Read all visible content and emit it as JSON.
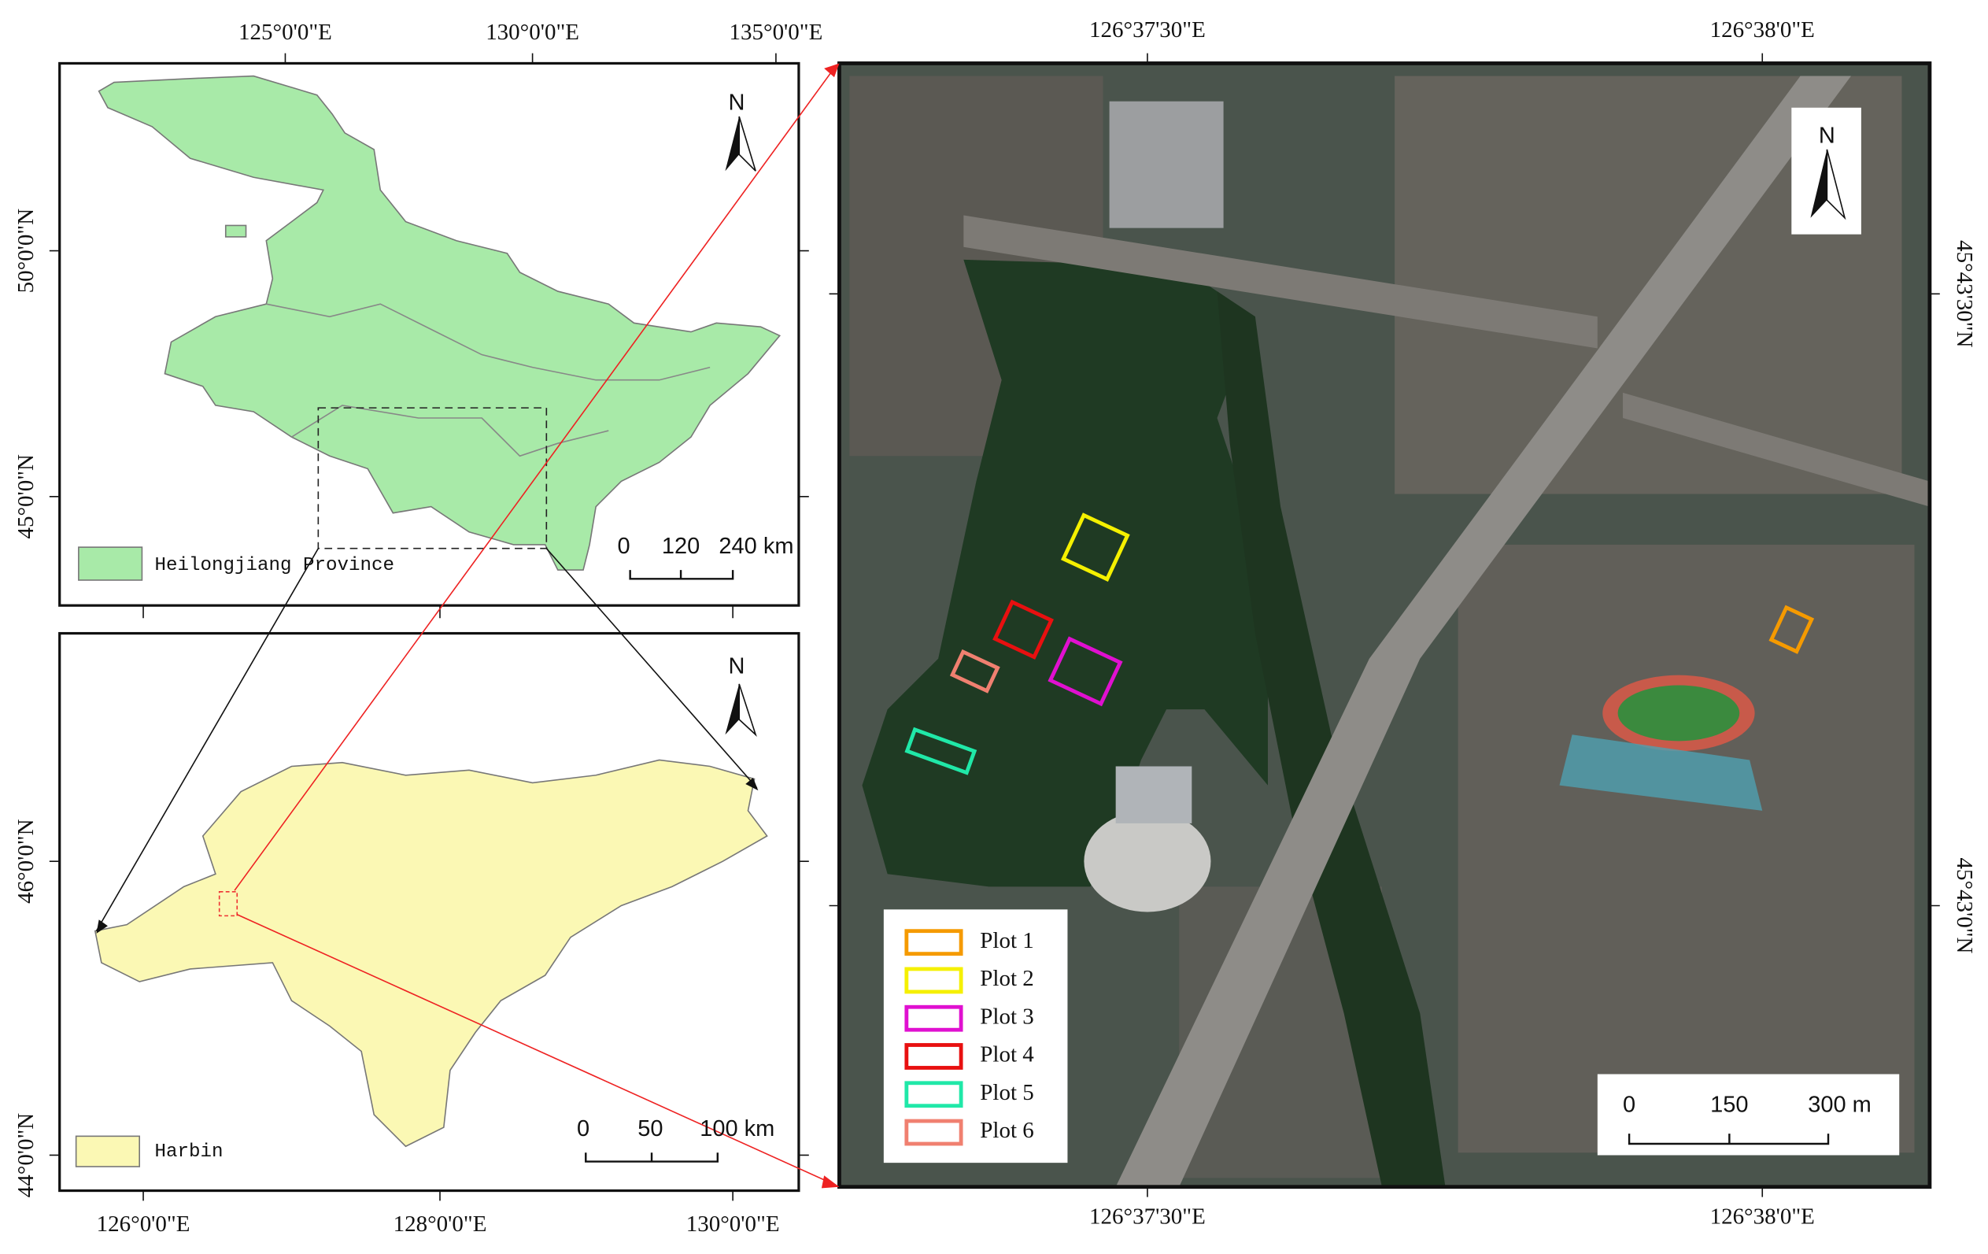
{
  "panels": {
    "heilongjiang": {
      "top_labels": [
        "125°0'0\"E",
        "130°0'0\"E",
        "135°0'0\"E"
      ],
      "left_labels": [
        "50°0'0\"N",
        "45°0'0\"N"
      ],
      "legend": "Heilongjiang Province",
      "scale": [
        "0",
        "120",
        "240 km"
      ],
      "north": "N"
    },
    "harbin": {
      "bottom_labels": [
        "126°0'0\"E",
        "128°0'0\"E",
        "130°0'0\"E"
      ],
      "left_labels": [
        "46°0'0\"N",
        "44°0'0\"N"
      ],
      "legend": "Harbin",
      "scale": [
        "0",
        "50",
        "100 km"
      ],
      "north": "N"
    },
    "satellite": {
      "top_labels": [
        "126°37'30\"E",
        "126°38'0\"E"
      ],
      "bottom_labels": [
        "126°37'30\"E",
        "126°38'0\"E"
      ],
      "right_labels": [
        "45°43'30\"N",
        "45°43'0\"N"
      ],
      "north": "N",
      "scale": [
        "0",
        "150",
        "300 m"
      ],
      "plots": [
        {
          "name": "Plot 1",
          "color": "#f59a00"
        },
        {
          "name": "Plot 2",
          "color": "#f5f000"
        },
        {
          "name": "Plot 3",
          "color": "#e010d0"
        },
        {
          "name": "Plot 4",
          "color": "#e81010"
        },
        {
          "name": "Plot 5",
          "color": "#20e8a8"
        },
        {
          "name": "Plot 6",
          "color": "#f08070"
        }
      ]
    }
  }
}
